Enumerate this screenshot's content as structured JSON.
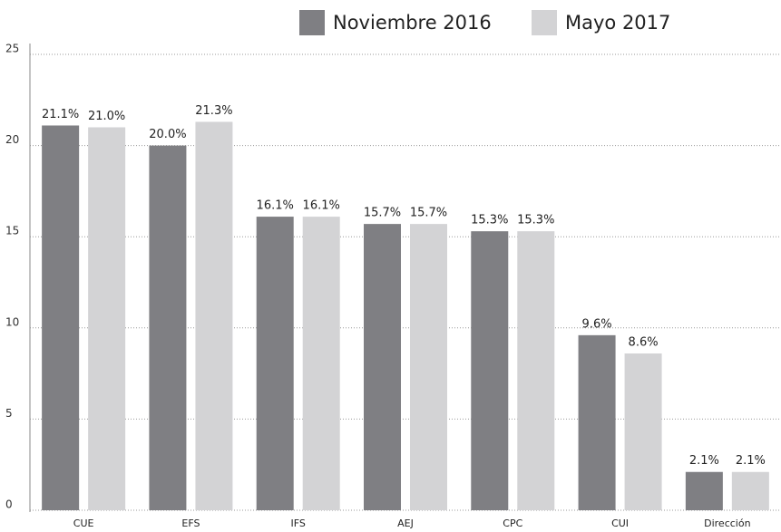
{
  "chart_data": {
    "type": "bar",
    "categories": [
      "CUE",
      "EFS",
      "IFS",
      "AEJ",
      "CPC",
      "CUI",
      "Dirección"
    ],
    "series": [
      {
        "name": "Noviembre 2016",
        "color": "#7f7f83",
        "values": [
          21.1,
          20.0,
          16.1,
          15.7,
          15.3,
          9.6,
          2.1
        ],
        "value_labels": [
          "21.1%",
          "20.0%",
          "16.1%",
          "15.7%",
          "15.3%",
          "9.6%",
          "2.1%"
        ]
      },
      {
        "name": "Mayo 2017",
        "color": "#d3d3d5",
        "values": [
          21.0,
          21.3,
          16.1,
          15.7,
          15.3,
          8.6,
          2.1
        ],
        "value_labels": [
          "21.0%",
          "21.3%",
          "16.1%",
          "15.7%",
          "15.3%",
          "8.6%",
          "2.1%"
        ]
      }
    ],
    "ylim": [
      0,
      25
    ],
    "yticks": [
      0,
      5,
      10,
      15,
      20,
      25
    ],
    "grid": true,
    "legend": "top"
  }
}
